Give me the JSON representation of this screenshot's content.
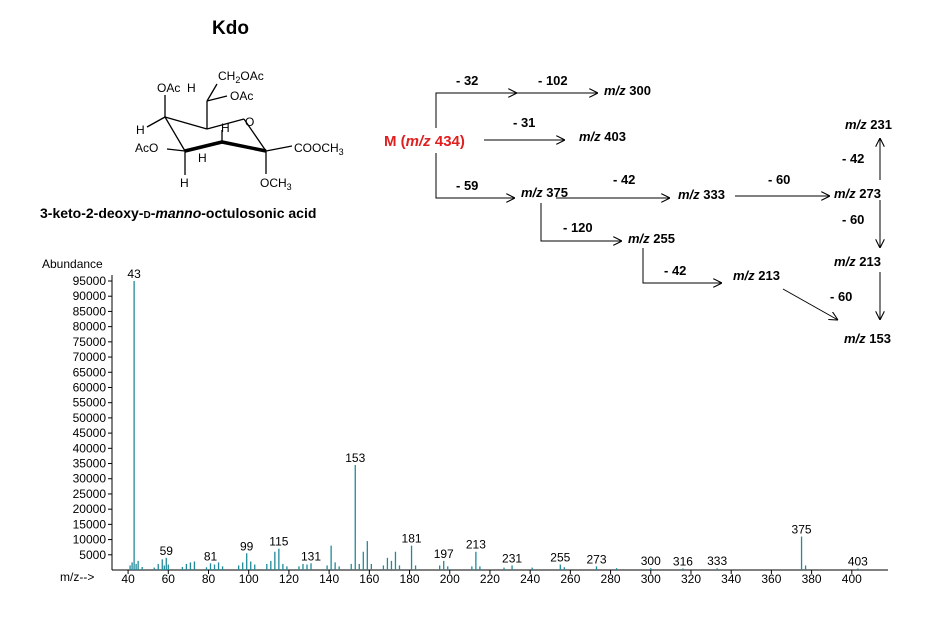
{
  "structure": {
    "title": "Kdo",
    "name_prefix": "3-keto-2-deoxy-",
    "name_d": "D",
    "name_dash": "-",
    "name_italic": "manno",
    "name_suffix": "-octulosonic acid",
    "labels": {
      "ch2oac_prefix": "CH",
      "ch2oac_sub": "2",
      "ch2oac_suffix": "OAc",
      "oac_top_left": "OAc",
      "h_top_left": "H",
      "oac_top_right": "OAc",
      "h_left": "H",
      "o_ring": "O",
      "h_ring_right": "H",
      "aco_left": "AcO",
      "h_ring_mid": "H",
      "h_bottom": "H",
      "cooch3_prefix": "COOCH",
      "cooch3_sub": "3",
      "och3_prefix": "OCH",
      "och3_sub": "3"
    }
  },
  "fragmentation": {
    "parent_prefix": "M (",
    "parent_mz": "m/z",
    "parent_value": " 434)",
    "loss_32": "- 32",
    "loss_102": "- 102",
    "loss_31": "- 31",
    "loss_59": "- 59",
    "loss_42_a": "- 42",
    "loss_60_a": "- 60",
    "loss_120": "- 120",
    "loss_42_b": "- 42",
    "loss_42_c": "- 42",
    "loss_60_b": "- 60",
    "loss_60_c": "- 60",
    "mz": "m/z",
    "ion_300": "300",
    "ion_403": "403",
    "ion_375": "375",
    "ion_333": "333",
    "ion_273": "273",
    "ion_231": "231",
    "ion_213_right": "213",
    "ion_153": "153",
    "ion_255": "255",
    "ion_213_mid": "213"
  },
  "chart_data": {
    "type": "bar",
    "ylabel": "Abundance",
    "xlabel": "m/z-->",
    "xlim": [
      32,
      418
    ],
    "ylim": [
      0,
      95000
    ],
    "xticks": [
      40,
      60,
      80,
      100,
      120,
      140,
      160,
      180,
      200,
      220,
      240,
      260,
      280,
      300,
      320,
      340,
      360,
      380,
      400
    ],
    "yticks": [
      5000,
      10000,
      15000,
      20000,
      25000,
      30000,
      35000,
      40000,
      45000,
      50000,
      55000,
      60000,
      65000,
      70000,
      75000,
      80000,
      85000,
      90000,
      95000
    ],
    "color": "#1f8a9a",
    "peaks": [
      {
        "x": 41,
        "y": 1500
      },
      {
        "x": 42,
        "y": 2500
      },
      {
        "x": 43,
        "y": 95000,
        "label": "43"
      },
      {
        "x": 44,
        "y": 2000
      },
      {
        "x": 45,
        "y": 3000
      },
      {
        "x": 47,
        "y": 1000
      },
      {
        "x": 53,
        "y": 800
      },
      {
        "x": 55,
        "y": 2000
      },
      {
        "x": 57,
        "y": 3500
      },
      {
        "x": 58,
        "y": 1500
      },
      {
        "x": 59,
        "y": 4000,
        "label": "59"
      },
      {
        "x": 60,
        "y": 1800
      },
      {
        "x": 67,
        "y": 1000
      },
      {
        "x": 69,
        "y": 2000
      },
      {
        "x": 71,
        "y": 2500
      },
      {
        "x": 73,
        "y": 2800
      },
      {
        "x": 79,
        "y": 900
      },
      {
        "x": 81,
        "y": 2200,
        "label": "81"
      },
      {
        "x": 83,
        "y": 1800
      },
      {
        "x": 85,
        "y": 2500
      },
      {
        "x": 87,
        "y": 1200
      },
      {
        "x": 95,
        "y": 1500
      },
      {
        "x": 97,
        "y": 2500
      },
      {
        "x": 99,
        "y": 5500,
        "label": "99"
      },
      {
        "x": 101,
        "y": 2800
      },
      {
        "x": 103,
        "y": 1800
      },
      {
        "x": 109,
        "y": 2000
      },
      {
        "x": 111,
        "y": 3000
      },
      {
        "x": 113,
        "y": 6000
      },
      {
        "x": 115,
        "y": 7000,
        "label": "115"
      },
      {
        "x": 117,
        "y": 2000
      },
      {
        "x": 119,
        "y": 1200
      },
      {
        "x": 125,
        "y": 1200
      },
      {
        "x": 127,
        "y": 2000
      },
      {
        "x": 129,
        "y": 1800
      },
      {
        "x": 131,
        "y": 2200,
        "label": "131"
      },
      {
        "x": 139,
        "y": 1500
      },
      {
        "x": 141,
        "y": 8000
      },
      {
        "x": 143,
        "y": 2500
      },
      {
        "x": 145,
        "y": 1200
      },
      {
        "x": 151,
        "y": 2000
      },
      {
        "x": 153,
        "y": 34500,
        "label": "153"
      },
      {
        "x": 155,
        "y": 2000
      },
      {
        "x": 157,
        "y": 6000
      },
      {
        "x": 159,
        "y": 9500
      },
      {
        "x": 161,
        "y": 2000
      },
      {
        "x": 167,
        "y": 1500
      },
      {
        "x": 169,
        "y": 4000
      },
      {
        "x": 171,
        "y": 3000
      },
      {
        "x": 173,
        "y": 6000
      },
      {
        "x": 175,
        "y": 1500
      },
      {
        "x": 181,
        "y": 8000,
        "label": "181"
      },
      {
        "x": 183,
        "y": 1500
      },
      {
        "x": 195,
        "y": 1500
      },
      {
        "x": 197,
        "y": 3000,
        "label": "197"
      },
      {
        "x": 199,
        "y": 1200
      },
      {
        "x": 211,
        "y": 1200
      },
      {
        "x": 213,
        "y": 6000,
        "label": "213"
      },
      {
        "x": 215,
        "y": 1200
      },
      {
        "x": 227,
        "y": 800
      },
      {
        "x": 231,
        "y": 1500,
        "label": "231"
      },
      {
        "x": 241,
        "y": 800
      },
      {
        "x": 255,
        "y": 1800,
        "label": "255"
      },
      {
        "x": 257,
        "y": 900
      },
      {
        "x": 273,
        "y": 1200,
        "label": "273"
      },
      {
        "x": 283,
        "y": 600
      },
      {
        "x": 300,
        "y": 600,
        "label": "300"
      },
      {
        "x": 316,
        "y": 500,
        "label": "316"
      },
      {
        "x": 333,
        "y": 600,
        "label": "333"
      },
      {
        "x": 375,
        "y": 11000,
        "label": "375"
      },
      {
        "x": 377,
        "y": 1500
      },
      {
        "x": 403,
        "y": 500,
        "label": "403"
      }
    ]
  }
}
